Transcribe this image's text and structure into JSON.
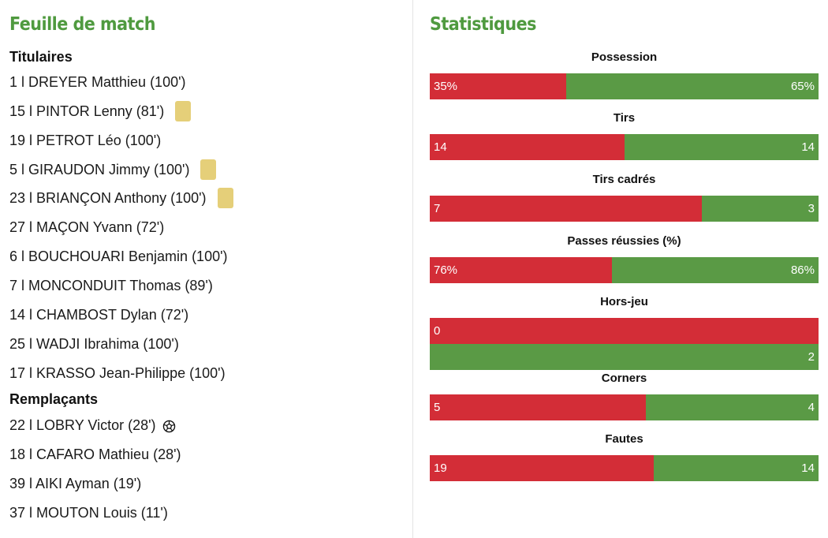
{
  "sheet": {
    "title": "Feuille de match",
    "starters_title": "Titulaires",
    "subs_title": "Remplaçants",
    "starters": [
      {
        "label": "1 l DREYER Matthieu (100')",
        "card": false
      },
      {
        "label": "15 l PINTOR Lenny (81')",
        "card": true
      },
      {
        "label": "19 l PETROT Léo (100')",
        "card": false
      },
      {
        "label": "5 l GIRAUDON Jimmy (100')",
        "card": true
      },
      {
        "label": "23 l BRIANÇON Anthony (100')",
        "card": true
      },
      {
        "label": "27 l MAÇON Yvann (72')",
        "card": false
      },
      {
        "label": "6 l BOUCHOUARI Benjamin (100')",
        "card": false
      },
      {
        "label": "7 l MONCONDUIT Thomas (89')",
        "card": false
      },
      {
        "label": "14 l CHAMBOST Dylan (72')",
        "card": false
      },
      {
        "label": "25 l WADJI Ibrahima (100')",
        "card": false
      },
      {
        "label": "17 l KRASSO Jean-Philippe (100')",
        "card": false
      }
    ],
    "subs": [
      {
        "label": "22 l LOBRY Victor (28')",
        "goal": true
      },
      {
        "label": "18 l CAFARO Mathieu (28')",
        "goal": false
      },
      {
        "label": "39 l AIKI Ayman (19')",
        "goal": false
      },
      {
        "label": "37 l MOUTON Louis (11')",
        "goal": false
      }
    ],
    "icons": {
      "card": "yellow-card-icon",
      "goal": "soccer-ball-icon"
    },
    "colors": {
      "title": "#4f9a3f",
      "card": "#e5cf79"
    }
  },
  "stats": {
    "title": "Statistiques",
    "colors": {
      "home": "#d32d37",
      "away": "#5a9a45"
    },
    "items": [
      {
        "label": "Possession",
        "home": "35%",
        "away": "65%",
        "home_share": 0.35
      },
      {
        "label": "Tirs",
        "home": "14",
        "away": "14",
        "home_share": 0.5
      },
      {
        "label": "Tirs cadrés",
        "home": "7",
        "away": "3",
        "home_share": 0.7
      },
      {
        "label": "Passes réussies (%)",
        "home": "76%",
        "away": "86%",
        "home_share": 0.469
      },
      {
        "label": "Hors-jeu",
        "home": "0",
        "away": "2",
        "split_rows": true
      },
      {
        "label": "Corners",
        "home": "5",
        "away": "4",
        "home_share": 0.556
      },
      {
        "label": "Fautes",
        "home": "19",
        "away": "14",
        "home_share": 0.576
      }
    ]
  }
}
